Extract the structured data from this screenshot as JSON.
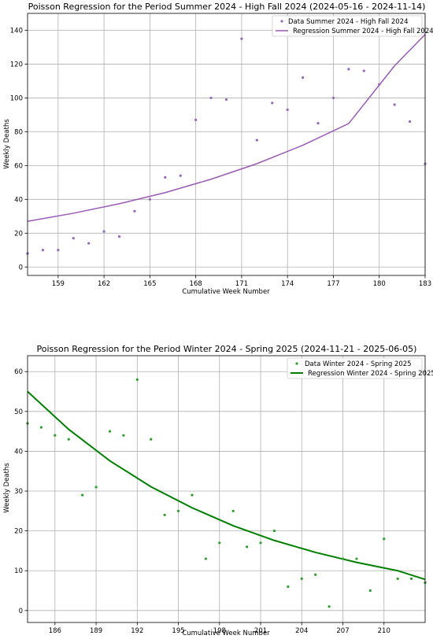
{
  "chart_data": [
    {
      "type": "scatter",
      "title": "Poisson Regression for the Period Summer 2024 - High Fall 2024 (2024-05-16 - 2024-11-14)",
      "xlabel": "Cumulative Week Number",
      "ylabel": "Weekly Deaths",
      "xlim": [
        157,
        183
      ],
      "ylim": [
        -5,
        150
      ],
      "xticks": [
        159,
        162,
        165,
        168,
        171,
        174,
        177,
        180,
        183
      ],
      "yticks": [
        0,
        20,
        40,
        60,
        80,
        100,
        120,
        140
      ],
      "grid": true,
      "legend_position": "top-right",
      "series": [
        {
          "name": "Data Summer 2024 - High Fall 2024",
          "kind": "scatter",
          "color": "#9467bd",
          "x": [
            157,
            158,
            159,
            160,
            161,
            162,
            163,
            164,
            165,
            166,
            167,
            168,
            169,
            170,
            171,
            172,
            173,
            174,
            175,
            176,
            177,
            178,
            179,
            180,
            181,
            182,
            183
          ],
          "y": [
            8,
            10,
            10,
            17,
            14,
            21,
            18,
            33,
            40,
            53,
            54,
            87,
            100,
            99,
            135,
            75,
            97,
            93,
            112,
            85,
            100,
            117,
            116,
            108,
            96,
            86,
            61
          ]
        },
        {
          "name": "Regression Summer 2024 - High Fall 2024",
          "kind": "line",
          "color": "#9b59b6",
          "x": [
            157,
            160,
            163,
            166,
            169,
            172,
            175,
            178,
            181,
            183
          ],
          "y": [
            27,
            31.8,
            37.4,
            44.0,
            51.9,
            61.1,
            72.0,
            84.8,
            119,
            137.5
          ]
        }
      ]
    },
    {
      "type": "scatter",
      "title": "Poisson Regression for the Period Winter 2024 - Spring 2025 (2024-11-21 - 2025-06-05)",
      "xlabel": "Cumulative Week Number",
      "ylabel": "Weekly Deaths",
      "xlim": [
        184,
        213
      ],
      "ylim": [
        -3,
        64
      ],
      "xticks": [
        186,
        189,
        192,
        195,
        198,
        201,
        204,
        207,
        210
      ],
      "yticks": [
        0,
        10,
        20,
        30,
        40,
        50,
        60
      ],
      "grid": true,
      "legend_position": "top-right",
      "series": [
        {
          "name": "Data Winter 2024 - Spring 2025",
          "kind": "scatter",
          "color": "#2ca02c",
          "x": [
            184,
            185,
            186,
            187,
            188,
            189,
            190,
            191,
            192,
            193,
            194,
            195,
            196,
            197,
            198,
            199,
            200,
            201,
            202,
            203,
            204,
            205,
            206,
            207,
            208,
            209,
            210,
            211,
            212,
            213
          ],
          "y": [
            47,
            46,
            44,
            43,
            29,
            31,
            45,
            44,
            58,
            43,
            24,
            25,
            29,
            13,
            17,
            25,
            16,
            17,
            20,
            6,
            8,
            9,
            1,
            13,
            13,
            5,
            18,
            8,
            8,
            7
          ],
          "note_unused": null
        },
        {
          "name": "Regression Winter 2024 - Spring 2025",
          "kind": "line",
          "color": "#008000",
          "x": [
            184,
            187,
            190,
            193,
            196,
            199,
            202,
            205,
            208,
            211,
            213
          ],
          "y": [
            55,
            45.5,
            37.6,
            31.1,
            25.8,
            21.3,
            17.6,
            14.6,
            12.1,
            10.0,
            7.8
          ]
        }
      ]
    }
  ]
}
